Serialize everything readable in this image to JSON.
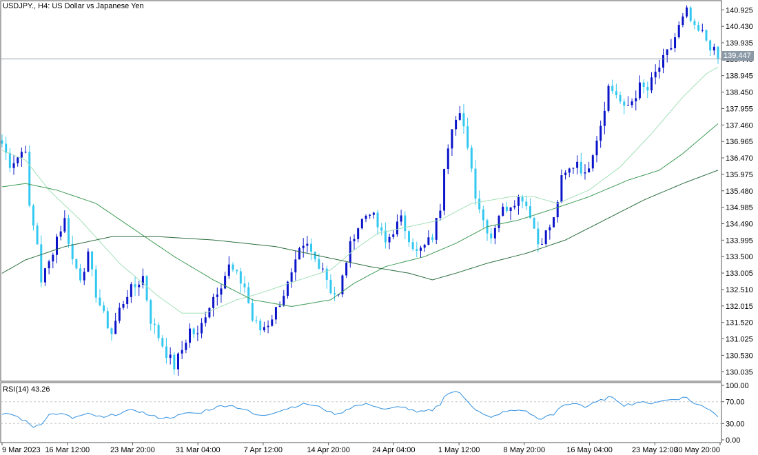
{
  "header": {
    "symbol": "USDJPY.,",
    "timeframe": "H4:",
    "description": "US Dollar vs Japanese Yen"
  },
  "current_price_label": "139.447",
  "rsi_panel": {
    "title": "RSI(14) 43.26"
  },
  "colors": {
    "bull": "#0a14c8",
    "bear": "#33c8f0",
    "ma_fast": "#a3e0b8",
    "ma_mid": "#3c9a55",
    "ma_slow": "#2b6e3f",
    "rsi": "#2f8fe0",
    "price_line": "#8c9aa8"
  },
  "chart_data": [
    {
      "type": "candlestick",
      "title": "USDJPY., H4: US Dollar vs Japanese Yen",
      "ylim": [
        129.75,
        141.2
      ],
      "y_ticks": [
        "140.925",
        "140.430",
        "139.935",
        "139.440",
        "138.945",
        "138.450",
        "137.955",
        "137.460",
        "136.965",
        "136.470",
        "135.975",
        "135.480",
        "134.985",
        "134.490",
        "133.995",
        "133.500",
        "133.005",
        "132.510",
        "132.015",
        "131.520",
        "131.025",
        "130.530",
        "130.035"
      ],
      "x_ticks": [
        "9 Mar 2023",
        "16 Mar 12:00",
        "23 Mar 20:00",
        "31 Mar 04:00",
        "7 Apr 12:00",
        "14 Apr 20:00",
        "24 Apr 04:00",
        "1 May 12:00",
        "8 May 20:00",
        "16 May 04:00",
        "23 May 12:00",
        "30 May 20:00"
      ],
      "current_price": 139.447,
      "close_path": [
        [
          0,
          136.9
        ],
        [
          2,
          136.3
        ],
        [
          4,
          136.5
        ],
        [
          6,
          136.8
        ],
        [
          7,
          134.9
        ],
        [
          9,
          133.9
        ],
        [
          10,
          132.8
        ],
        [
          12,
          133.3
        ],
        [
          14,
          134.1
        ],
        [
          16,
          134.6
        ],
        [
          18,
          133.4
        ],
        [
          20,
          132.9
        ],
        [
          22,
          133.5
        ],
        [
          24,
          132.4
        ],
        [
          26,
          131.7
        ],
        [
          28,
          131.2
        ],
        [
          30,
          131.9
        ],
        [
          32,
          132.4
        ],
        [
          34,
          132.6
        ],
        [
          36,
          132.9
        ],
        [
          38,
          131.6
        ],
        [
          40,
          131.1
        ],
        [
          42,
          130.6
        ],
        [
          44,
          130.2
        ],
        [
          46,
          130.7
        ],
        [
          48,
          131.3
        ],
        [
          50,
          131.1
        ],
        [
          52,
          131.8
        ],
        [
          54,
          132.3
        ],
        [
          56,
          132.7
        ],
        [
          58,
          133.2
        ],
        [
          60,
          132.9
        ],
        [
          62,
          132.6
        ],
        [
          64,
          131.6
        ],
        [
          66,
          131.3
        ],
        [
          68,
          131.5
        ],
        [
          70,
          131.9
        ],
        [
          72,
          132.4
        ],
        [
          74,
          132.9
        ],
        [
          76,
          133.6
        ],
        [
          78,
          133.8
        ],
        [
          80,
          133.4
        ],
        [
          82,
          133.2
        ],
        [
          84,
          132.5
        ],
        [
          86,
          132.3
        ],
        [
          88,
          133.4
        ],
        [
          90,
          134.2
        ],
        [
          92,
          134.6
        ],
        [
          94,
          134.9
        ],
        [
          96,
          134.4
        ],
        [
          98,
          133.9
        ],
        [
          100,
          134.3
        ],
        [
          102,
          134.6
        ],
        [
          104,
          134.1
        ],
        [
          106,
          133.6
        ],
        [
          108,
          133.8
        ],
        [
          110,
          134.1
        ],
        [
          112,
          135.0
        ],
        [
          113,
          136.3
        ],
        [
          115,
          137.5
        ],
        [
          117,
          137.7
        ],
        [
          119,
          136.9
        ],
        [
          121,
          135.4
        ],
        [
          123,
          134.6
        ],
        [
          125,
          134.1
        ],
        [
          127,
          134.8
        ],
        [
          129,
          135.0
        ],
        [
          131,
          135.2
        ],
        [
          133,
          135.3
        ],
        [
          135,
          134.8
        ],
        [
          137,
          133.9
        ],
        [
          139,
          134.2
        ],
        [
          141,
          134.6
        ],
        [
          143,
          135.8
        ],
        [
          145,
          136.1
        ],
        [
          147,
          136.4
        ],
        [
          149,
          135.9
        ],
        [
          151,
          136.7
        ],
        [
          153,
          137.5
        ],
        [
          155,
          138.6
        ],
        [
          157,
          138.4
        ],
        [
          159,
          137.9
        ],
        [
          161,
          138.2
        ],
        [
          163,
          138.6
        ],
        [
          165,
          138.5
        ],
        [
          167,
          139.0
        ],
        [
          169,
          139.4
        ],
        [
          171,
          139.8
        ],
        [
          173,
          140.4
        ],
        [
          175,
          140.85
        ],
        [
          177,
          140.3
        ],
        [
          179,
          140.2
        ],
        [
          181,
          139.85
        ],
        [
          183,
          139.447
        ]
      ],
      "moving_averages": [
        {
          "color": "ma_fast",
          "values": [
            [
              0,
              136.7
            ],
            [
              6,
              136.4
            ],
            [
              12,
              135.5
            ],
            [
              20,
              134.6
            ],
            [
              30,
              133.3
            ],
            [
              40,
              132.3
            ],
            [
              46,
              131.8
            ],
            [
              52,
              131.8
            ],
            [
              60,
              132.2
            ],
            [
              66,
              132.4
            ],
            [
              76,
              132.8
            ],
            [
              84,
              133.1
            ],
            [
              90,
              133.7
            ],
            [
              96,
              134.2
            ],
            [
              104,
              134.4
            ],
            [
              112,
              134.6
            ],
            [
              120,
              135.1
            ],
            [
              130,
              135.3
            ],
            [
              136,
              135.3
            ],
            [
              142,
              135.1
            ],
            [
              150,
              135.5
            ],
            [
              158,
              136.2
            ],
            [
              166,
              137.2
            ],
            [
              174,
              138.3
            ],
            [
              180,
              139.0
            ],
            [
              183,
              139.2
            ]
          ]
        },
        {
          "color": "ma_mid",
          "values": [
            [
              0,
              135.6
            ],
            [
              6,
              135.7
            ],
            [
              14,
              135.5
            ],
            [
              24,
              135.1
            ],
            [
              34,
              134.3
            ],
            [
              44,
              133.5
            ],
            [
              54,
              132.8
            ],
            [
              64,
              132.2
            ],
            [
              74,
              132.0
            ],
            [
              84,
              132.2
            ],
            [
              90,
              132.7
            ],
            [
              98,
              133.2
            ],
            [
              108,
              133.5
            ],
            [
              116,
              133.9
            ],
            [
              124,
              134.4
            ],
            [
              132,
              134.6
            ],
            [
              140,
              134.9
            ],
            [
              150,
              135.3
            ],
            [
              160,
              135.8
            ],
            [
              168,
              136.1
            ],
            [
              174,
              136.6
            ],
            [
              180,
              137.2
            ],
            [
              183,
              137.5
            ]
          ]
        },
        {
          "color": "ma_slow",
          "values": [
            [
              0,
              133.0
            ],
            [
              6,
              133.4
            ],
            [
              16,
              133.8
            ],
            [
              28,
              134.1
            ],
            [
              40,
              134.1
            ],
            [
              54,
              134.0
            ],
            [
              70,
              133.8
            ],
            [
              82,
              133.5
            ],
            [
              94,
              133.2
            ],
            [
              104,
              133.0
            ],
            [
              110,
              132.8
            ],
            [
              116,
              133.0
            ],
            [
              124,
              133.3
            ],
            [
              134,
              133.6
            ],
            [
              144,
              134.0
            ],
            [
              154,
              134.6
            ],
            [
              164,
              135.2
            ],
            [
              174,
              135.7
            ],
            [
              183,
              136.1
            ]
          ]
        }
      ]
    },
    {
      "type": "line",
      "title": "RSI(14) 43.26",
      "ylim": [
        0,
        100
      ],
      "y_ticks": [
        "100.00",
        "70.00",
        "30.00",
        "0.00"
      ],
      "levels": [
        70,
        30
      ],
      "values": [
        [
          0,
          45
        ],
        [
          2,
          48
        ],
        [
          4,
          42
        ],
        [
          6,
          34
        ],
        [
          8,
          24
        ],
        [
          10,
          30
        ],
        [
          12,
          46
        ],
        [
          14,
          48
        ],
        [
          16,
          46
        ],
        [
          18,
          40
        ],
        [
          20,
          44
        ],
        [
          22,
          47
        ],
        [
          24,
          44
        ],
        [
          26,
          40
        ],
        [
          28,
          45
        ],
        [
          30,
          49
        ],
        [
          32,
          52
        ],
        [
          34,
          55
        ],
        [
          36,
          50
        ],
        [
          38,
          44
        ],
        [
          40,
          41
        ],
        [
          42,
          40
        ],
        [
          44,
          43
        ],
        [
          46,
          46
        ],
        [
          48,
          50
        ],
        [
          50,
          48
        ],
        [
          52,
          54
        ],
        [
          54,
          58
        ],
        [
          56,
          62
        ],
        [
          58,
          64
        ],
        [
          60,
          60
        ],
        [
          62,
          56
        ],
        [
          64,
          48
        ],
        [
          66,
          44
        ],
        [
          68,
          47
        ],
        [
          70,
          52
        ],
        [
          72,
          56
        ],
        [
          74,
          60
        ],
        [
          76,
          64
        ],
        [
          78,
          66
        ],
        [
          80,
          62
        ],
        [
          82,
          58
        ],
        [
          84,
          50
        ],
        [
          86,
          47
        ],
        [
          88,
          56
        ],
        [
          90,
          62
        ],
        [
          92,
          64
        ],
        [
          94,
          66
        ],
        [
          96,
          60
        ],
        [
          98,
          55
        ],
        [
          100,
          58
        ],
        [
          102,
          62
        ],
        [
          104,
          56
        ],
        [
          106,
          50
        ],
        [
          108,
          52
        ],
        [
          110,
          55
        ],
        [
          112,
          66
        ],
        [
          113,
          80
        ],
        [
          115,
          88
        ],
        [
          117,
          86
        ],
        [
          119,
          72
        ],
        [
          121,
          56
        ],
        [
          123,
          46
        ],
        [
          125,
          40
        ],
        [
          127,
          48
        ],
        [
          129,
          52
        ],
        [
          131,
          54
        ],
        [
          133,
          55
        ],
        [
          135,
          48
        ],
        [
          137,
          38
        ],
        [
          139,
          42
        ],
        [
          141,
          46
        ],
        [
          143,
          62
        ],
        [
          145,
          66
        ],
        [
          147,
          68
        ],
        [
          149,
          60
        ],
        [
          151,
          66
        ],
        [
          153,
          72
        ],
        [
          155,
          78
        ],
        [
          157,
          74
        ],
        [
          159,
          64
        ],
        [
          161,
          66
        ],
        [
          163,
          70
        ],
        [
          165,
          66
        ],
        [
          167,
          70
        ],
        [
          169,
          72
        ],
        [
          171,
          74
        ],
        [
          173,
          76
        ],
        [
          175,
          78
        ],
        [
          177,
          66
        ],
        [
          179,
          62
        ],
        [
          181,
          56
        ],
        [
          183,
          43.26
        ]
      ]
    }
  ]
}
